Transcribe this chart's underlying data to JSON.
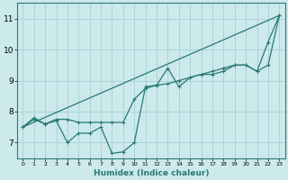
{
  "xlabel": "Humidex (Indice chaleur)",
  "xlim": [
    -0.5,
    23.5
  ],
  "ylim": [
    6.5,
    11.5
  ],
  "yticks": [
    7,
    8,
    9,
    10,
    11
  ],
  "xticks": [
    0,
    1,
    2,
    3,
    4,
    5,
    6,
    7,
    8,
    9,
    10,
    11,
    12,
    13,
    14,
    15,
    16,
    17,
    18,
    19,
    20,
    21,
    22,
    23
  ],
  "background_color": "#cce9ec",
  "grid_color": "#aad4d8",
  "line_color": "#2a7a72",
  "line1_y": [
    7.5,
    7.8,
    7.6,
    7.7,
    7.0,
    7.3,
    7.3,
    7.5,
    6.65,
    6.7,
    7.0,
    8.8,
    8.85,
    9.4,
    8.8,
    9.1,
    9.2,
    9.2,
    9.3,
    9.5,
    9.5,
    9.3,
    9.5,
    11.1
  ],
  "line2_y": [
    7.5,
    7.75,
    7.6,
    7.75,
    7.75,
    7.65,
    7.65,
    7.65,
    7.65,
    7.65,
    8.4,
    8.75,
    8.85,
    8.9,
    9.0,
    9.1,
    9.2,
    9.3,
    9.4,
    9.5,
    9.5,
    9.3,
    10.25,
    11.1
  ],
  "line3_y": [
    7.5,
    11.1
  ],
  "line3_x": [
    0,
    23
  ]
}
